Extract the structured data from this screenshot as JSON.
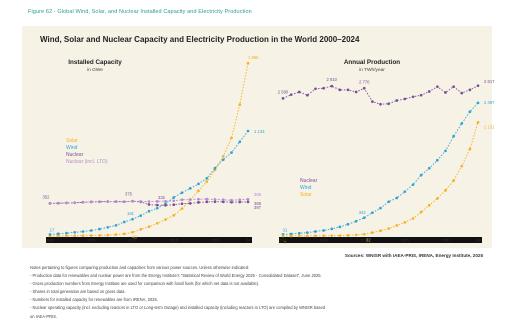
{
  "figure_caption": "Figure 62 - Global Wind, Solar, and Nuclear Installed Capacity and Electricity Production",
  "source": "Sources: WNISR with IAEA-PRIS, IRENA, Energy Institute, 2025",
  "notes": [
    "Notes pertaining to figures comparing production and capacities from various power sources. Unless otherwise indicated:",
    "- Production data for renewables and nuclear power are from the Energy Institute's \"Statistical Review of World Energy 2025 - Consolidated Dataset\", June 2025.",
    "- Gross production numbers from Energy Institute are used for comparison with fossil fuels (for which net data is not available).",
    "- Shares in total generation are based on gross data.",
    "- Numbers for installed capacity for renewables are from IRENA, 2025.",
    "- Nuclear operating capacity (incl. excluding reactors in LTO or Long-term Outage) and installed capacity (including reactors in LTO) are compiled by WNISR based",
    "  on IAEA-PRIS."
  ],
  "colors": {
    "solar": "#f5b120",
    "wind": "#2ca5d8",
    "nuclear": "#7a4e9a",
    "nuclear_incl_lto": "#b48cd0",
    "panel_bg": "#f7f2e6",
    "axis": "#111111",
    "caption": "#2a9d8f"
  },
  "chart_data": [
    {
      "type": "line",
      "title": "Installed Capacity",
      "unit": "in GWe",
      "x": [
        2000,
        2001,
        2002,
        2003,
        2004,
        2005,
        2006,
        2007,
        2008,
        2009,
        2010,
        2011,
        2012,
        2013,
        2014,
        2015,
        2016,
        2017,
        2018,
        2019,
        2020,
        2021,
        2022,
        2023,
        2024
      ],
      "x_ticks": [
        "2000",
        "2005",
        "2010",
        "2015",
        "2020",
        "24"
      ],
      "ylim": [
        0,
        1900
      ],
      "legend": [
        "Solar",
        "Wind",
        "Nuclear",
        "Nuclear (incl. LTO)"
      ],
      "legend_position": "left",
      "series": [
        {
          "name": "Solar",
          "values": [
            1,
            1,
            2,
            3,
            4,
            5,
            7,
            9,
            15,
            23,
            40,
            72,
            100,
            137,
            177,
            223,
            295,
            390,
            487,
            587,
            714,
            860,
            1060,
            1418,
            1865
          ]
        },
        {
          "name": "Wind",
          "values": [
            17,
            24,
            31,
            40,
            48,
            59,
            74,
            94,
            115,
            151,
            181,
            220,
            267,
            300,
            349,
            416,
            467,
            514,
            563,
            622,
            733,
            824,
            900,
            1017,
            1133
          ]
        },
        {
          "name": "Nuclear",
          "values": [
            352,
            354,
            357,
            359,
            364,
            368,
            370,
            372,
            371,
            370,
            375,
            368,
            340,
            333,
            332,
            338,
            348,
            352,
            363,
            368,
            370,
            369,
            365,
            367,
            368
          ]
        },
        {
          "name": "Nuclear (incl. LTO)",
          "values": [
            352,
            354,
            357,
            359,
            364,
            368,
            370,
            372,
            371,
            370,
            375,
            373,
            372,
            374,
            376,
            380,
            391,
            394,
            397,
            398,
            395,
            391,
            386,
            391,
            397
          ]
        }
      ],
      "data_labels": [
        "352",
        "375",
        "332",
        "368",
        "1 865",
        "1 133",
        "368",
        "397",
        "17",
        "181",
        "40"
      ]
    },
    {
      "type": "line",
      "title": "Annual Production",
      "unit": "in TWh/year",
      "x": [
        2000,
        2001,
        2002,
        2003,
        2004,
        2005,
        2006,
        2007,
        2008,
        2009,
        2010,
        2011,
        2012,
        2013,
        2014,
        2015,
        2016,
        2017,
        2018,
        2019,
        2020,
        2021,
        2022,
        2023,
        2024
      ],
      "x_ticks": [
        "2000",
        "2005",
        "2010",
        "2015",
        "2020",
        "24"
      ],
      "ylim": [
        0,
        3300
      ],
      "legend": [
        "Nuclear",
        "Wind",
        "Solar"
      ],
      "legend_position": "left",
      "series": [
        {
          "name": "Nuclear",
          "values": [
            2580,
            2650,
            2700,
            2640,
            2760,
            2770,
            2810,
            2740,
            2740,
            2700,
            2770,
            2520,
            2470,
            2480,
            2540,
            2570,
            2610,
            2640,
            2710,
            2800,
            2690,
            2800,
            2680,
            2740,
            2817
          ]
        },
        {
          "name": "Wind",
          "values": [
            31,
            38,
            52,
            63,
            85,
            104,
            133,
            171,
            220,
            276,
            342,
            437,
            523,
            642,
            712,
            831,
            962,
            1141,
            1270,
            1420,
            1597,
            1870,
            2110,
            2330,
            2497
          ]
        },
        {
          "name": "Solar",
          "values": [
            1,
            1,
            2,
            3,
            3,
            4,
            6,
            8,
            12,
            20,
            32,
            63,
            98,
            139,
            197,
            256,
            328,
            448,
            577,
            703,
            856,
            1040,
            1309,
            1630,
            2131
          ]
        }
      ],
      "data_labels": [
        "2 580",
        "2 810",
        "2 770",
        "2 817",
        "2 497",
        "2 131",
        "31",
        "342",
        "32",
        "1"
      ]
    }
  ],
  "main_title": "Wind, Solar and Nuclear Capacity and Electricity Production in the World 2000–2024"
}
